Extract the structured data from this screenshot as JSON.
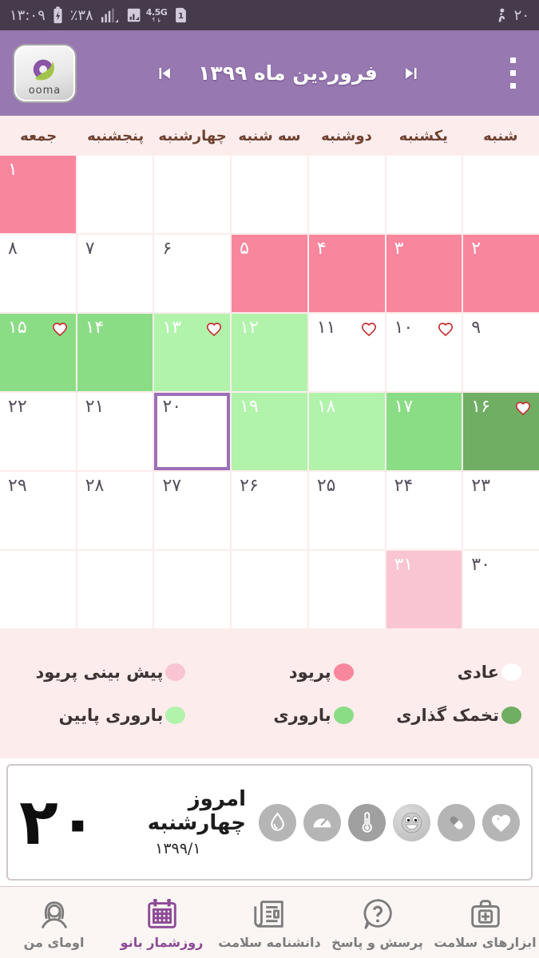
{
  "status_bar": {
    "time": "۱۳:۰۹",
    "battery_percent": "٪۳۸",
    "network_label": "4.5G",
    "sim_label": "1",
    "right_value": "۲۰"
  },
  "app_bar": {
    "title": "فروردین ماه ۱۳۹۹",
    "logo_text": "ooma"
  },
  "weekdays": [
    "شنبه",
    "یکشنبه",
    "دوشنبه",
    "سه شنبه",
    "چهارشنبه",
    "پنجشنبه",
    "جمعه"
  ],
  "calendar": {
    "weeks": [
      [
        {
          "type": "empty"
        },
        {
          "type": "empty"
        },
        {
          "type": "empty"
        },
        {
          "type": "empty"
        },
        {
          "type": "empty"
        },
        {
          "type": "empty"
        },
        {
          "day": "۱",
          "type": "period"
        }
      ],
      [
        {
          "day": "۲",
          "type": "period"
        },
        {
          "day": "۳",
          "type": "period"
        },
        {
          "day": "۴",
          "type": "period"
        },
        {
          "day": "۵",
          "type": "period"
        },
        {
          "day": "۶",
          "type": "normal"
        },
        {
          "day": "۷",
          "type": "normal"
        },
        {
          "day": "۸",
          "type": "normal"
        }
      ],
      [
        {
          "day": "۹",
          "type": "normal"
        },
        {
          "day": "۱۰",
          "type": "normal",
          "heart": true
        },
        {
          "day": "۱۱",
          "type": "normal",
          "heart": true
        },
        {
          "day": "۱۲",
          "type": "low_fertility"
        },
        {
          "day": "۱۳",
          "type": "low_fertility",
          "heart": true
        },
        {
          "day": "۱۴",
          "type": "fertility"
        },
        {
          "day": "۱۵",
          "type": "fertility",
          "heart": true
        }
      ],
      [
        {
          "day": "۱۶",
          "type": "ovulation",
          "heart": true
        },
        {
          "day": "۱۷",
          "type": "fertility"
        },
        {
          "day": "۱۸",
          "type": "low_fertility"
        },
        {
          "day": "۱۹",
          "type": "low_fertility"
        },
        {
          "day": "۲۰",
          "type": "normal",
          "today": true
        },
        {
          "day": "۲۱",
          "type": "normal"
        },
        {
          "day": "۲۲",
          "type": "normal"
        }
      ],
      [
        {
          "day": "۲۳",
          "type": "normal"
        },
        {
          "day": "۲۴",
          "type": "normal"
        },
        {
          "day": "۲۵",
          "type": "normal"
        },
        {
          "day": "۲۶",
          "type": "normal"
        },
        {
          "day": "۲۷",
          "type": "normal"
        },
        {
          "day": "۲۸",
          "type": "normal"
        },
        {
          "day": "۲۹",
          "type": "normal"
        }
      ],
      [
        {
          "day": "۳۰",
          "type": "normal"
        },
        {
          "day": "۳۱",
          "type": "prediction"
        },
        {
          "type": "empty"
        },
        {
          "type": "empty"
        },
        {
          "type": "empty"
        },
        {
          "type": "empty"
        },
        {
          "type": "empty"
        }
      ]
    ]
  },
  "legend": {
    "items": [
      {
        "id": "normal",
        "label": "عادی",
        "color": "#ffffff"
      },
      {
        "id": "period",
        "label": "پریود",
        "color": "#f8879d"
      },
      {
        "id": "period-prediction",
        "label": "پیش بینی پریود",
        "color": "#f9c5d2"
      },
      {
        "id": "ovulation",
        "label": "تخمک گذاری",
        "color": "#6fae63"
      },
      {
        "id": "fertility",
        "label": "باروری",
        "color": "#8bdd85"
      },
      {
        "id": "low-fertility",
        "label": "باروری پایین",
        "color": "#b1f3ab"
      }
    ]
  },
  "today_card": {
    "day_number": "۲۰",
    "title": "امروز چهارشنبه",
    "date": "۱۳۹۹/۱",
    "icons": [
      "water-drop",
      "scale",
      "thermometer",
      "mood",
      "pill",
      "heart"
    ]
  },
  "bottom_nav": {
    "items": [
      {
        "id": "health-tools",
        "label": "ابزارهای سلامت",
        "icon": "toolkit",
        "active": false
      },
      {
        "id": "question-answer",
        "label": "پرسش و پاسخ",
        "icon": "question",
        "active": false
      },
      {
        "id": "health-encyclopedia",
        "label": "دانشنامه سلامت",
        "icon": "encyclopedia",
        "active": false
      },
      {
        "id": "lady-calendar",
        "label": "روزشمار بانو",
        "icon": "calendar",
        "active": true
      },
      {
        "id": "my-ooma",
        "label": "اومای من",
        "icon": "woman",
        "active": false
      }
    ]
  },
  "colors": {
    "statusbar": "#463a4d",
    "appbar": "#9878b1",
    "period": "#f8879d",
    "prediction": "#f9c5d2",
    "low_fertility": "#b1f3ab",
    "fertility": "#8bdd85",
    "ovulation": "#6fae63",
    "today_border": "#9c70b7",
    "active_nav": "#8d4a96",
    "calendar_bg": "#fdecec"
  }
}
